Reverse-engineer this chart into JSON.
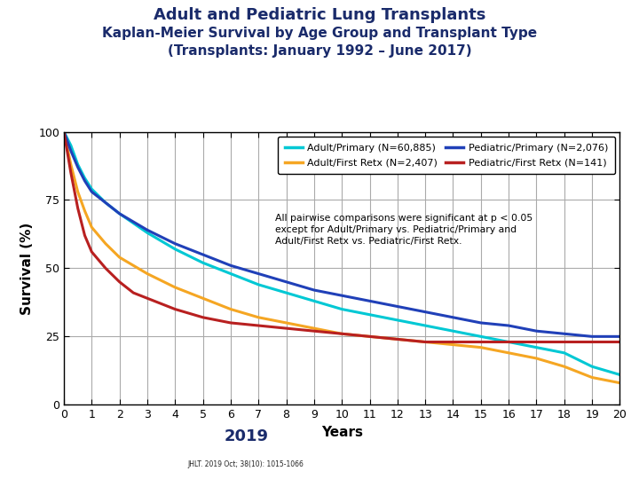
{
  "title_line1": "Adult and Pediatric Lung Transplants",
  "title_line2": "Kaplan-Meier Survival by Age Group and Transplant Type",
  "title_line3": "(Transplants: January 1992 – June 2017)",
  "xlabel": "Years",
  "ylabel": "Survival (%)",
  "xlim": [
    0,
    20
  ],
  "ylim": [
    0,
    100
  ],
  "xticks": [
    0,
    1,
    2,
    3,
    4,
    5,
    6,
    7,
    8,
    9,
    10,
    11,
    12,
    13,
    14,
    15,
    16,
    17,
    18,
    19,
    20
  ],
  "yticks": [
    0,
    25,
    50,
    75,
    100
  ],
  "title_color": "#1a2b6b",
  "annotation": "All pairwise comparisons were significant at p < 0.05\nexcept for Adult/Primary vs. Pediatric/Primary and\nAdult/First Retx vs. Pediatric/First Retx.",
  "series": [
    {
      "label": "Adult/Primary (N=60,885)",
      "color": "#00c8d4",
      "x": [
        0,
        0.25,
        0.5,
        0.75,
        1,
        1.5,
        2,
        3,
        4,
        5,
        6,
        7,
        8,
        9,
        10,
        11,
        12,
        13,
        14,
        15,
        16,
        17,
        18,
        19,
        20
      ],
      "y": [
        100,
        95,
        88,
        83,
        79,
        74,
        70,
        63,
        57,
        52,
        48,
        44,
        41,
        38,
        35,
        33,
        31,
        29,
        27,
        25,
        23,
        21,
        19,
        14,
        11
      ]
    },
    {
      "label": "Adult/First Retx (N=2,407)",
      "color": "#f5a623",
      "x": [
        0,
        0.25,
        0.5,
        0.75,
        1,
        1.5,
        2,
        3,
        4,
        5,
        6,
        7,
        8,
        9,
        10,
        11,
        12,
        13,
        14,
        15,
        16,
        17,
        18,
        19,
        20
      ],
      "y": [
        100,
        88,
        78,
        71,
        65,
        59,
        54,
        48,
        43,
        39,
        35,
        32,
        30,
        28,
        26,
        25,
        24,
        23,
        22,
        21,
        19,
        17,
        14,
        10,
        8
      ]
    },
    {
      "label": "Pediatric/Primary (N=2,076)",
      "color": "#2040b8",
      "x": [
        0,
        0.25,
        0.5,
        0.75,
        1,
        1.5,
        2,
        3,
        4,
        5,
        6,
        7,
        8,
        9,
        10,
        11,
        12,
        13,
        14,
        15,
        16,
        17,
        18,
        19,
        20
      ],
      "y": [
        100,
        93,
        87,
        82,
        78,
        74,
        70,
        64,
        59,
        55,
        51,
        48,
        45,
        42,
        40,
        38,
        36,
        34,
        32,
        30,
        29,
        27,
        26,
        25,
        25
      ]
    },
    {
      "label": "Pediatric/First Retx (N=141)",
      "color": "#b82020",
      "x": [
        0,
        0.25,
        0.5,
        0.75,
        1,
        1.5,
        2,
        2.5,
        3,
        3.5,
        4,
        5,
        6,
        7,
        8,
        9,
        10,
        11,
        12,
        13,
        14,
        15,
        16,
        17,
        18,
        19,
        20
      ],
      "y": [
        100,
        85,
        72,
        62,
        56,
        50,
        45,
        41,
        39,
        37,
        35,
        32,
        30,
        29,
        28,
        27,
        26,
        25,
        24,
        23,
        23,
        23,
        23,
        23,
        23,
        23,
        23
      ]
    }
  ],
  "background_color": "#ffffff",
  "grid_color": "#aaaaaa",
  "footer_bg_color": "#c0392b",
  "footer_stripe_color": "#1a4a8a"
}
